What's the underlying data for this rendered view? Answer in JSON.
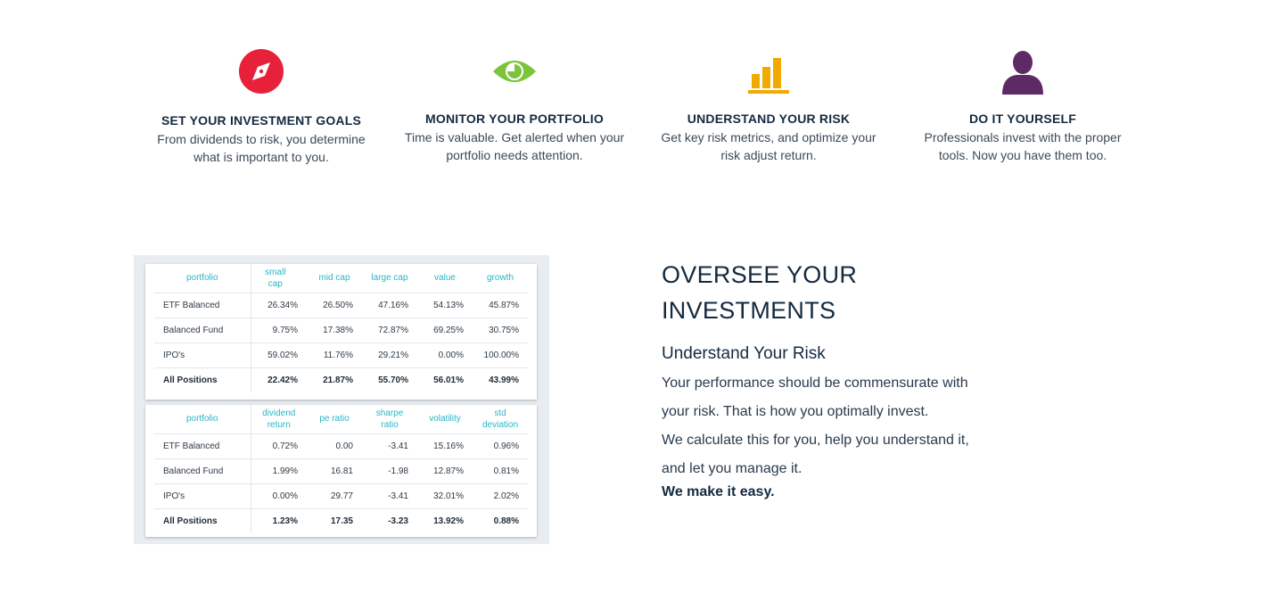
{
  "features": [
    {
      "icon": "compass-icon",
      "color": "#e8213a",
      "title": "SET YOUR INVESTMENT GOALS",
      "desc": [
        "From dividends to risk, you determine",
        "what is important to you."
      ]
    },
    {
      "icon": "eye-icon",
      "color": "#7dc43a",
      "title": "MONITOR YOUR PORTFOLIO",
      "desc": [
        "Time is valuable. Get alerted when your",
        "portfolio needs attention."
      ]
    },
    {
      "icon": "bar-chart-icon",
      "color": "#f2a900",
      "title": "UNDERSTAND YOUR RISK",
      "desc": [
        "Get key risk metrics, and optimize your",
        "risk adjust return."
      ]
    },
    {
      "icon": "person-icon",
      "color": "#5e2a66",
      "title": "DO IT YOURSELF",
      "desc": [
        "Professionals invest with the proper",
        "tools. Now you have them too."
      ]
    }
  ],
  "table1": {
    "headers": [
      "portfolio",
      "small cap",
      "mid cap",
      "large cap",
      "value",
      "growth"
    ],
    "rows": [
      [
        "ETF Balanced",
        "26.34%",
        "26.50%",
        "47.16%",
        "54.13%",
        "45.87%"
      ],
      [
        "Balanced Fund",
        "9.75%",
        "17.38%",
        "72.87%",
        "69.25%",
        "30.75%"
      ],
      [
        "IPO's",
        "59.02%",
        "11.76%",
        "29.21%",
        "0.00%",
        "100.00%"
      ],
      [
        "All Positions",
        "22.42%",
        "21.87%",
        "55.70%",
        "56.01%",
        "43.99%"
      ]
    ]
  },
  "table2": {
    "headers": [
      "portfolio",
      "dividend return",
      "pe ratio",
      "sharpe ratio",
      "volatility",
      "std deviation"
    ],
    "rows": [
      [
        "ETF Balanced",
        "0.72%",
        "0.00",
        "-3.41",
        "15.16%",
        "0.96%"
      ],
      [
        "Balanced Fund",
        "1.99%",
        "16.81",
        "-1.98",
        "12.87%",
        "0.81%"
      ],
      [
        "IPO's",
        "0.00%",
        "29.77",
        "-3.41",
        "32.01%",
        "2.02%"
      ],
      [
        "All Positions",
        "1.23%",
        "17.35",
        "-3.23",
        "13.92%",
        "0.88%"
      ]
    ]
  },
  "right": {
    "title_line1": "OVERSEE YOUR",
    "title_line2": "INVESTMENTS",
    "subtitle": "Understand Your Risk",
    "lines": [
      "Your performance should be commensurate with",
      "your risk. That is how you optimally invest.",
      "We calculate this for you, help you understand it,",
      "and let you manage it."
    ],
    "bold": "We make it easy."
  }
}
